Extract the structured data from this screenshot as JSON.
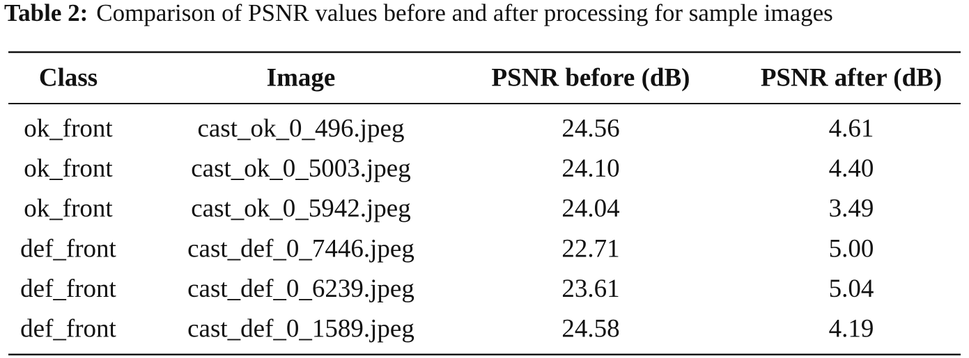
{
  "caption": {
    "label": "Table 2:",
    "text": "Comparison of PSNR values before and after processing for sample images"
  },
  "table": {
    "headers": [
      "Class",
      "Image",
      "PSNR before (dB)",
      "PSNR after (dB)"
    ],
    "rows": [
      [
        "ok_front",
        "cast_ok_0_496.jpeg",
        "24.56",
        "4.61"
      ],
      [
        "ok_front",
        "cast_ok_0_5003.jpeg",
        "24.10",
        "4.40"
      ],
      [
        "ok_front",
        "cast_ok_0_5942.jpeg",
        "24.04",
        "3.49"
      ],
      [
        "def_front",
        "cast_def_0_7446.jpeg",
        "22.71",
        "5.00"
      ],
      [
        "def_front",
        "cast_def_0_6239.jpeg",
        "23.61",
        "5.04"
      ],
      [
        "def_front",
        "cast_def_0_1589.jpeg",
        "24.58",
        "4.19"
      ]
    ]
  }
}
